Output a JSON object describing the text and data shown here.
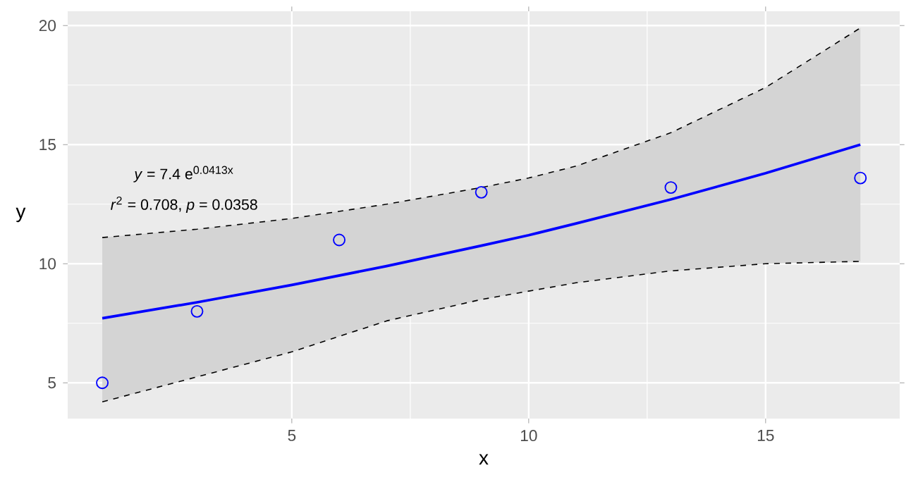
{
  "chart_data": {
    "type": "scatter",
    "xlabel": "x",
    "ylabel": "y",
    "xlim": [
      0.27,
      17.83
    ],
    "ylim": [
      3.5,
      20.6
    ],
    "xticks": [
      5,
      10,
      15
    ],
    "yticks": [
      5,
      10,
      15,
      20
    ],
    "grid": true,
    "annotations": [
      "*y* = 7.4 e$^{0.0413x}$",
      "*r*$^{2}$ = 0.708, *p* = 0.0358"
    ],
    "series": [
      {
        "type": "scatter",
        "marker": "circle",
        "color": "#0000ff",
        "x": [
          1,
          3,
          6,
          9,
          13,
          17
        ],
        "values": [
          5,
          8.0,
          11.0,
          13.0,
          13.2,
          13.6
        ]
      },
      {
        "type": "line",
        "line_style": "solid",
        "color": "#0000ff",
        "x": [
          1,
          3,
          5,
          7,
          9,
          10,
          11,
          13,
          15,
          17
        ],
        "values": [
          7.71,
          8.38,
          9.11,
          9.9,
          10.76,
          11.2,
          11.69,
          12.7,
          13.8,
          15.0
        ],
        "lower": [
          4.2,
          5.25,
          6.3,
          7.6,
          8.5,
          8.85,
          9.2,
          9.7,
          10.0,
          10.1
        ],
        "upper": [
          11.1,
          11.45,
          11.9,
          12.5,
          13.2,
          13.6,
          14.1,
          15.5,
          17.4,
          19.9
        ]
      },
      {
        "type": "line",
        "line_style": "dashed",
        "color": "#000000",
        "x": [
          1,
          3,
          5,
          7,
          9,
          10,
          11,
          13,
          15,
          17
        ],
        "values": [
          11.1,
          11.45,
          11.9,
          12.5,
          13.2,
          13.6,
          14.1,
          15.5,
          17.4,
          19.9
        ]
      },
      {
        "type": "line",
        "line_style": "dashed",
        "color": "#000000",
        "x": [
          1,
          3,
          5,
          7,
          9,
          10,
          11,
          13,
          15,
          17
        ],
        "values": [
          4.2,
          5.25,
          6.3,
          7.6,
          8.5,
          8.85,
          9.2,
          9.7,
          10.0,
          10.1
        ]
      }
    ]
  }
}
